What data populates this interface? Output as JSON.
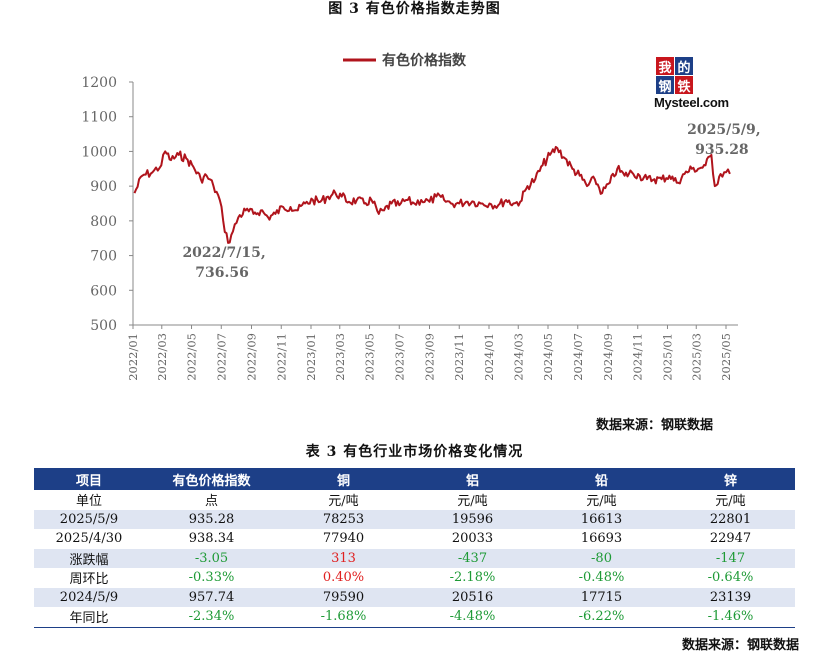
{
  "figure_title": "图 3  有色价格指数走势图",
  "logo": {
    "cells": [
      "我",
      "的",
      "钢",
      "铁"
    ],
    "brand": "Mysteel.com",
    "colors": [
      "#c8161d",
      "#1d3f87",
      "#1d3f87",
      "#c8161d"
    ]
  },
  "chart_data": {
    "type": "line",
    "series": [
      {
        "name": "有色价格指数",
        "color": "#b0141c",
        "x": [
          "2022-01-04",
          "2022-01-20",
          "2022-02-10",
          "2022-02-28",
          "2022-03-08",
          "2022-03-20",
          "2022-04-05",
          "2022-04-20",
          "2022-05-05",
          "2022-05-20",
          "2022-06-01",
          "2022-06-15",
          "2022-06-28",
          "2022-07-05",
          "2022-07-15",
          "2022-07-25",
          "2022-08-05",
          "2022-08-20",
          "2022-09-05",
          "2022-09-20",
          "2022-10-05",
          "2022-10-20",
          "2022-11-05",
          "2022-11-20",
          "2022-12-05",
          "2022-12-20",
          "2023-01-05",
          "2023-01-20",
          "2023-02-05",
          "2023-02-20",
          "2023-03-05",
          "2023-03-20",
          "2023-04-05",
          "2023-04-20",
          "2023-05-05",
          "2023-05-20",
          "2023-05-31",
          "2023-06-15",
          "2023-07-01",
          "2023-07-15",
          "2023-08-01",
          "2023-08-15",
          "2023-09-01",
          "2023-09-15",
          "2023-10-01",
          "2023-10-15",
          "2023-11-01",
          "2023-11-15",
          "2023-12-01",
          "2023-12-15",
          "2024-01-02",
          "2024-01-20",
          "2024-02-05",
          "2024-02-20",
          "2024-03-05",
          "2024-03-20",
          "2024-04-05",
          "2024-04-20",
          "2024-05-05",
          "2024-05-20",
          "2024-06-05",
          "2024-06-20",
          "2024-07-05",
          "2024-07-20",
          "2024-08-05",
          "2024-08-20",
          "2024-09-05",
          "2024-09-20",
          "2024-10-05",
          "2024-10-20",
          "2024-11-05",
          "2024-11-20",
          "2024-12-05",
          "2024-12-20",
          "2025-01-05",
          "2025-01-20",
          "2025-02-05",
          "2025-02-20",
          "2025-03-05",
          "2025-03-20",
          "2025-04-01",
          "2025-04-08",
          "2025-04-20",
          "2025-05-01",
          "2025-05-09"
        ],
        "values": [
          880,
          930,
          940,
          960,
          1000,
          975,
          990,
          980,
          955,
          920,
          930,
          900,
          860,
          800,
          736.56,
          770,
          810,
          830,
          820,
          830,
          810,
          820,
          840,
          840,
          830,
          850,
          860,
          855,
          870,
          880,
          870,
          855,
          860,
          850,
          860,
          820,
          830,
          850,
          845,
          860,
          850,
          860,
          855,
          870,
          860,
          850,
          850,
          855,
          855,
          850,
          850,
          845,
          860,
          850,
          855,
          900,
          920,
          960,
          990,
          1010,
          980,
          950,
          930,
          900,
          920,
          880,
          910,
          950,
          930,
          940,
          930,
          920,
          920,
          920,
          930,
          910,
          935,
          950,
          950,
          960,
          990,
          900,
          935,
          940,
          935.28
        ]
      }
    ],
    "ylim": [
      500,
      1200
    ],
    "yticks": [
      500,
      600,
      700,
      800,
      900,
      1000,
      1100,
      1200
    ],
    "xticks": [
      "2022/01",
      "2022/03",
      "2022/05",
      "2022/07",
      "2022/09",
      "2022/11",
      "2023/01",
      "2023/03",
      "2023/05",
      "2023/07",
      "2023/09",
      "2023/11",
      "2024/01",
      "2024/03",
      "2024/05",
      "2024/07",
      "2024/09",
      "2024/11",
      "2025/01",
      "2025/03",
      "2025/05"
    ],
    "grid": false,
    "legend": "top",
    "annotations": [
      {
        "lines": [
          "2022/7/15,",
          "736.56"
        ],
        "x": "2022-07-15",
        "y": 736.56
      },
      {
        "lines": [
          "2025/5/9,",
          "935.28"
        ],
        "x": "2025-05-09",
        "y": 935.28
      }
    ]
  },
  "source_text": "数据来源：钢联数据",
  "table": {
    "title": "表 3 有色行业市场价格变化情况",
    "headers": [
      "项目",
      "有色价格指数",
      "铜",
      "铝",
      "铅",
      "锌"
    ],
    "rows": [
      {
        "cells": [
          "单位",
          "点",
          "元/吨",
          "元/吨",
          "元/吨",
          "元/吨"
        ],
        "colors": [
          "",
          "",
          "",
          "",
          "",
          ""
        ]
      },
      {
        "cells": [
          "2025/5/9",
          "935.28",
          "78253",
          "19596",
          "16613",
          "22801"
        ],
        "colors": [
          "",
          "",
          "",
          "",
          "",
          ""
        ]
      },
      {
        "cells": [
          "2025/4/30",
          "938.34",
          "77940",
          "20033",
          "16693",
          "22947"
        ],
        "colors": [
          "",
          "",
          "",
          "",
          "",
          ""
        ]
      },
      {
        "cells": [
          "涨跌幅",
          "-3.05",
          "313",
          "-437",
          "-80",
          "-147"
        ],
        "colors": [
          "",
          "green",
          "red",
          "green",
          "green",
          "green"
        ]
      },
      {
        "cells": [
          "周环比",
          "-0.33%",
          "0.40%",
          "-2.18%",
          "-0.48%",
          "-0.64%"
        ],
        "colors": [
          "",
          "green",
          "red",
          "green",
          "green",
          "green"
        ]
      },
      {
        "cells": [
          "2024/5/9",
          "957.74",
          "79590",
          "20516",
          "17715",
          "23139"
        ],
        "colors": [
          "",
          "",
          "",
          "",
          "",
          ""
        ]
      },
      {
        "cells": [
          "年同比",
          "-2.34%",
          "-1.68%",
          "-4.48%",
          "-6.22%",
          "-1.46%"
        ],
        "colors": [
          "",
          "green",
          "green",
          "green",
          "green",
          "green"
        ]
      }
    ],
    "source_text": "数据来源：钢联数据"
  }
}
